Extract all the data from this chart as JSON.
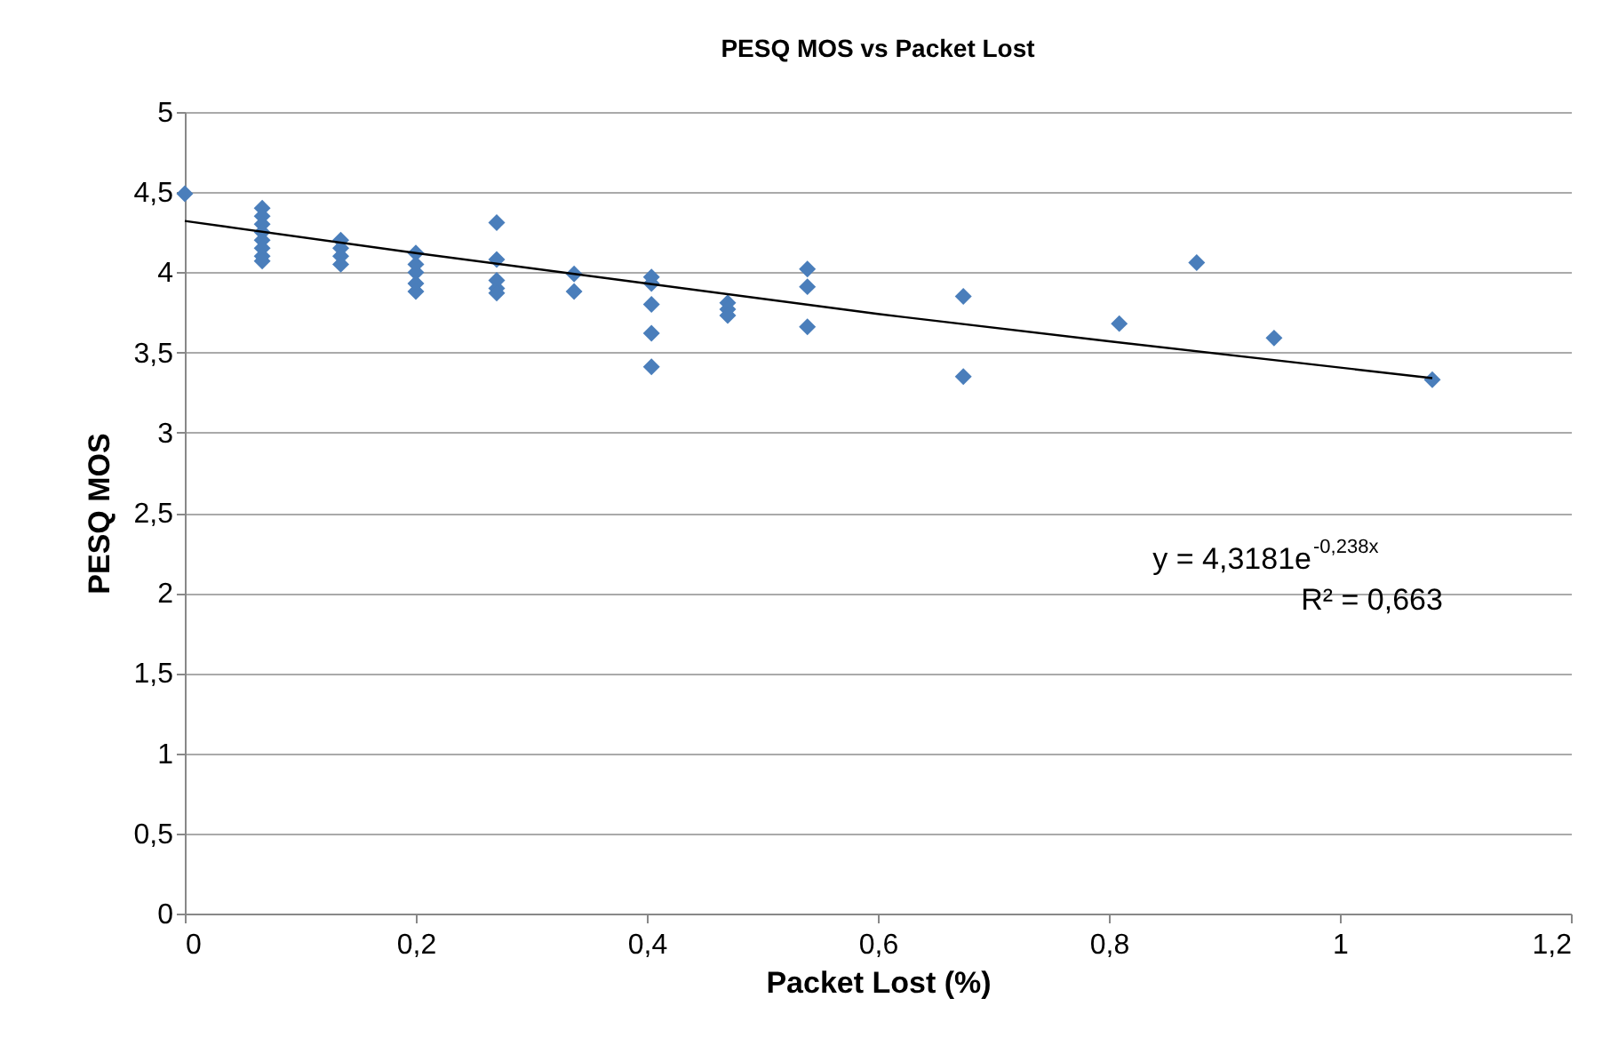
{
  "chart_data": {
    "type": "scatter",
    "title": "PESQ MOS vs Packet Lost",
    "xlabel": "Packet Lost (%)",
    "ylabel": "PESQ  MOS",
    "xlim": [
      0,
      1.2
    ],
    "xticks": [
      {
        "value": 0,
        "label": "0"
      },
      {
        "value": 0.2,
        "label": "0,2"
      },
      {
        "value": 0.4,
        "label": "0,4"
      },
      {
        "value": 0.6,
        "label": "0,6"
      },
      {
        "value": 0.8,
        "label": "0,8"
      },
      {
        "value": 1,
        "label": "1"
      },
      {
        "value": 1.2,
        "label": "1,2"
      }
    ],
    "ylim": [
      0,
      5
    ],
    "yticks": [
      {
        "value": 0,
        "label": "0"
      },
      {
        "value": 0.5,
        "label": "0,5"
      },
      {
        "value": 1,
        "label": "1"
      },
      {
        "value": 1.5,
        "label": "1,5"
      },
      {
        "value": 2,
        "label": "2"
      },
      {
        "value": 2.5,
        "label": "2,5"
      },
      {
        "value": 3,
        "label": "3"
      },
      {
        "value": 3.5,
        "label": "3,5"
      },
      {
        "value": 4,
        "label": "4"
      },
      {
        "value": 4.5,
        "label": "4,5"
      },
      {
        "value": 5,
        "label": "5"
      }
    ],
    "grid": "y",
    "series": [
      {
        "color": "#4a7ebb",
        "marker": "diamond",
        "x": [
          0,
          0.067,
          0.067,
          0.067,
          0.067,
          0.067,
          0.067,
          0.067,
          0.067,
          0.135,
          0.135,
          0.135,
          0.135,
          0.2,
          0.2,
          0.2,
          0.2,
          0.2,
          0.27,
          0.27,
          0.27,
          0.27,
          0.27,
          0.337,
          0.337,
          0.404,
          0.404,
          0.404,
          0.404,
          0.404,
          0.47,
          0.47,
          0.47,
          0.539,
          0.539,
          0.539,
          0.674,
          0.674,
          0.809,
          0.876,
          0.943,
          1.08
        ],
        "values": [
          4.49,
          4.4,
          4.35,
          4.3,
          4.25,
          4.2,
          4.15,
          4.1,
          4.07,
          4.2,
          4.15,
          4.1,
          4.05,
          4.12,
          4.05,
          4.0,
          3.93,
          3.88,
          4.31,
          4.08,
          3.95,
          3.9,
          3.87,
          3.99,
          3.88,
          3.97,
          3.93,
          3.8,
          3.62,
          3.41,
          3.81,
          3.77,
          3.73,
          4.02,
          3.91,
          3.66,
          3.85,
          3.35,
          3.68,
          4.06,
          3.59,
          3.33
        ]
      },
      {
        "type": "line",
        "line_style": "solid",
        "color": "#000000",
        "x": [
          0,
          0.2,
          0.4,
          0.6,
          0.8,
          1.08
        ],
        "values": [
          4.32,
          4.12,
          3.93,
          3.74,
          3.57,
          3.34
        ]
      }
    ],
    "annotations": [
      "y = 4,3181e$^{-0,238x}$",
      "R² = 0,663"
    ]
  }
}
